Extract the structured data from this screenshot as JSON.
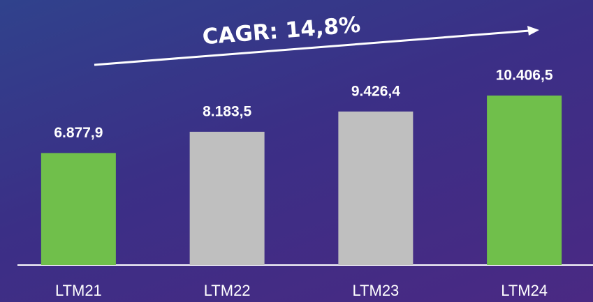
{
  "chart_data": {
    "type": "bar",
    "annotation": "CAGR: 14,8%",
    "categories": [
      "LTM21",
      "LTM22",
      "LTM23",
      "LTM24"
    ],
    "values": [
      6877.9,
      8183.5,
      9426.4,
      10406.5
    ],
    "value_labels": [
      "6.877,9",
      "8.183,5",
      "9.426,4",
      "10.406,5"
    ],
    "colors": [
      "#70bf4b",
      "#bfbfbf",
      "#bfbfbf",
      "#70bf4b"
    ]
  }
}
